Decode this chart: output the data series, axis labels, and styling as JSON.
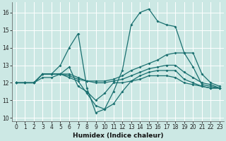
{
  "xlabel": "Humidex (Indice chaleur)",
  "bg_color": "#cce8e4",
  "grid_color": "#ffffff",
  "line_color": "#1a7070",
  "xlim": [
    -0.5,
    23.5
  ],
  "ylim": [
    9.8,
    16.6
  ],
  "yticks": [
    10,
    11,
    12,
    13,
    14,
    15,
    16
  ],
  "xticks": [
    0,
    1,
    2,
    3,
    4,
    5,
    6,
    7,
    8,
    9,
    10,
    11,
    12,
    13,
    14,
    15,
    16,
    17,
    18,
    19,
    20,
    21,
    22,
    23
  ],
  "series": [
    {
      "x": [
        0,
        1,
        2,
        3,
        4,
        5,
        6,
        7,
        8,
        9,
        10,
        11,
        12,
        13,
        14,
        15,
        16,
        17,
        18,
        19,
        20,
        21,
        22,
        23
      ],
      "y": [
        12.0,
        12.0,
        12.0,
        12.5,
        12.5,
        13.0,
        14.0,
        14.8,
        11.7,
        10.3,
        10.5,
        11.5,
        12.7,
        15.3,
        16.0,
        16.2,
        15.5,
        15.3,
        15.2,
        13.7,
        12.9,
        11.9,
        11.8,
        11.7
      ]
    },
    {
      "x": [
        0,
        1,
        2,
        3,
        4,
        5,
        6,
        7,
        8,
        9,
        10,
        11,
        12,
        13,
        14,
        15,
        16,
        17,
        18,
        19,
        20,
        21,
        22,
        23
      ],
      "y": [
        12.0,
        12.0,
        12.0,
        12.5,
        12.5,
        12.5,
        12.5,
        12.3,
        12.1,
        12.1,
        12.1,
        12.2,
        12.4,
        12.7,
        12.9,
        13.1,
        13.3,
        13.6,
        13.7,
        13.7,
        13.7,
        12.5,
        12.0,
        11.8
      ]
    },
    {
      "x": [
        0,
        1,
        2,
        3,
        4,
        5,
        6,
        7,
        8,
        9,
        10,
        11,
        12,
        13,
        14,
        15,
        16,
        17,
        18,
        19,
        20,
        21,
        22,
        23
      ],
      "y": [
        12.0,
        12.0,
        12.0,
        12.5,
        12.5,
        12.5,
        12.4,
        12.2,
        12.1,
        12.0,
        12.0,
        12.1,
        12.2,
        12.4,
        12.6,
        12.8,
        12.9,
        13.0,
        13.0,
        12.6,
        12.3,
        12.0,
        11.9,
        11.7
      ]
    },
    {
      "x": [
        0,
        1,
        2,
        3,
        4,
        5,
        6,
        7,
        8,
        9,
        10,
        11,
        12,
        13,
        14,
        15,
        16,
        17,
        18,
        19,
        20,
        21,
        22,
        23
      ],
      "y": [
        12.0,
        12.0,
        12.0,
        12.5,
        12.5,
        12.5,
        12.3,
        12.1,
        11.4,
        10.7,
        10.5,
        10.8,
        11.5,
        12.1,
        12.4,
        12.6,
        12.7,
        12.7,
        12.7,
        12.2,
        12.0,
        11.8,
        11.7,
        11.7
      ]
    },
    {
      "x": [
        0,
        1,
        2,
        3,
        4,
        5,
        6,
        7,
        8,
        9,
        10,
        11,
        12,
        13,
        14,
        15,
        16,
        17,
        18,
        19,
        20,
        21,
        22,
        23
      ],
      "y": [
        12.0,
        12.0,
        12.0,
        12.3,
        12.3,
        12.5,
        12.9,
        11.8,
        11.5,
        11.0,
        11.4,
        12.0,
        12.0,
        12.1,
        12.2,
        12.4,
        12.4,
        12.4,
        12.3,
        12.0,
        11.9,
        11.8,
        11.7,
        11.7
      ]
    }
  ]
}
